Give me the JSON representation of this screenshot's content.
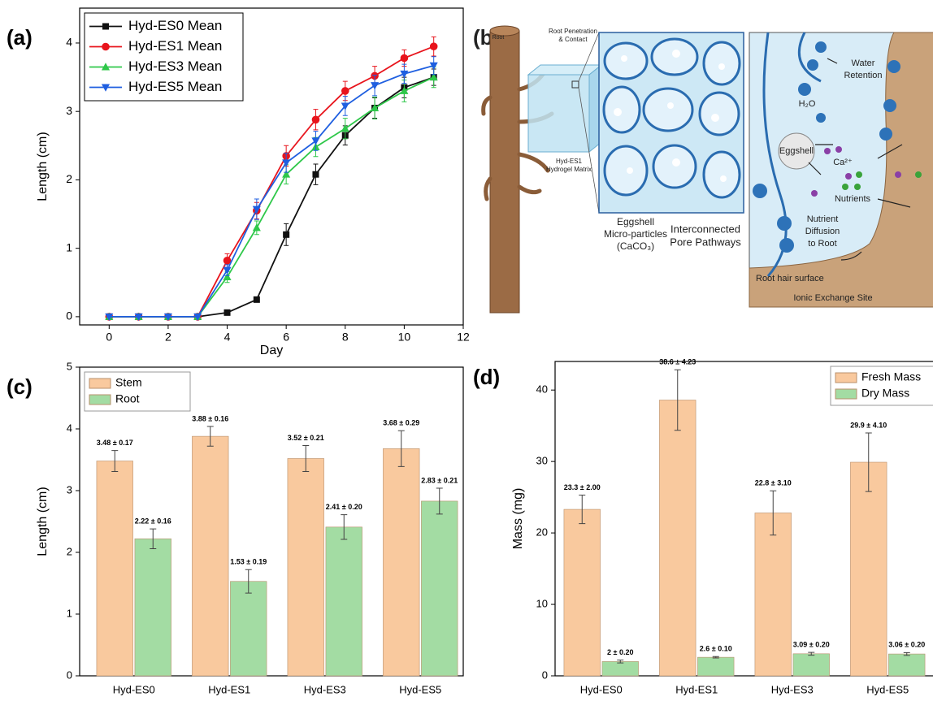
{
  "chart_data": [
    {
      "type": "line",
      "panel": "(a)",
      "xlabel": "Day",
      "ylabel": "Length (cm)",
      "x": [
        0,
        1,
        2,
        3,
        4,
        5,
        6,
        7,
        8,
        9,
        10,
        11
      ],
      "series": [
        {
          "name": "Hyd-ES0 Mean",
          "color": "#111111",
          "marker": "square",
          "values": [
            0,
            0,
            0,
            0,
            0.06,
            0.25,
            1.2,
            2.08,
            2.65,
            3.05,
            3.35,
            3.5
          ],
          "errors": [
            0,
            0,
            0,
            0,
            0.02,
            0.03,
            0.16,
            0.15,
            0.14,
            0.15,
            0.15,
            0.12
          ]
        },
        {
          "name": "Hyd-ES1 Mean",
          "color": "#e8141c",
          "marker": "circle",
          "values": [
            0,
            0,
            0,
            0,
            0.82,
            1.55,
            2.35,
            2.88,
            3.3,
            3.52,
            3.78,
            3.95
          ],
          "errors": [
            0,
            0,
            0,
            0,
            0.1,
            0.12,
            0.15,
            0.15,
            0.14,
            0.14,
            0.12,
            0.14
          ]
        },
        {
          "name": "Hyd-ES3 Mean",
          "color": "#2fc84a",
          "marker": "triangle-up",
          "values": [
            0,
            0,
            0,
            0,
            0.58,
            1.3,
            2.08,
            2.48,
            2.75,
            3.05,
            3.3,
            3.5
          ],
          "errors": [
            0,
            0,
            0,
            0,
            0.08,
            0.1,
            0.14,
            0.14,
            0.15,
            0.16,
            0.16,
            0.15
          ]
        },
        {
          "name": "Hyd-ES5 Mean",
          "color": "#1f5fe0",
          "marker": "triangle-down",
          "values": [
            0,
            0,
            0,
            0,
            0.68,
            1.57,
            2.25,
            2.57,
            3.08,
            3.38,
            3.55,
            3.67
          ],
          "errors": [
            0,
            0,
            0,
            0,
            0.08,
            0.15,
            0.14,
            0.14,
            0.14,
            0.15,
            0.14,
            0.13
          ]
        }
      ],
      "xlim": [
        -1,
        12
      ],
      "xticks": [
        0,
        2,
        4,
        6,
        8,
        10,
        12
      ],
      "ylim": [
        -0.12,
        4.51
      ],
      "yticks": [
        0,
        1,
        2,
        3,
        4
      ],
      "legend": "upper left"
    },
    {
      "type": "bar",
      "panel": "(c)",
      "ylabel": "Length (cm)",
      "categories": [
        "Hyd-ES0",
        "Hyd-ES1",
        "Hyd-ES3",
        "Hyd-ES5"
      ],
      "series": [
        {
          "name": "Stem",
          "color": "#f9c99e",
          "values": [
            3.48,
            3.88,
            3.52,
            3.68
          ],
          "errors": [
            0.17,
            0.16,
            0.21,
            0.29
          ],
          "value_labels": [
            "3.48 ± 0.17",
            "3.88 ± 0.16",
            "3.52 ± 0.21",
            "3.68 ± 0.29"
          ]
        },
        {
          "name": "Root",
          "color": "#a3dca3",
          "values": [
            2.22,
            1.53,
            2.41,
            2.83
          ],
          "errors": [
            0.16,
            0.19,
            0.2,
            0.21
          ],
          "value_labels": [
            "2.22 ± 0.16",
            "1.53 ± 0.19",
            "2.41 ± 0.20",
            "2.83 ± 0.21"
          ]
        }
      ],
      "ylim": [
        0,
        5
      ],
      "yticks": [
        0,
        1,
        2,
        3,
        4,
        5
      ],
      "legend": "upper left"
    },
    {
      "type": "bar",
      "panel": "(d)",
      "ylabel": "Mass (mg)",
      "categories": [
        "Hyd-ES0",
        "Hyd-ES1",
        "Hyd-ES3",
        "Hyd-ES5"
      ],
      "series": [
        {
          "name": "Fresh Mass",
          "color": "#f9c99e",
          "values": [
            23.3,
            38.6,
            22.8,
            29.9
          ],
          "errors": [
            2.0,
            4.23,
            3.1,
            4.1
          ],
          "value_labels": [
            "23.3 ± 2.00",
            "38.6 ± 4.23",
            "22.8 ± 3.10",
            "29.9 ± 4.10"
          ]
        },
        {
          "name": "Dry Mass",
          "color": "#a3dca3",
          "values": [
            2,
            2.6,
            3.09,
            3.06
          ],
          "errors": [
            0.2,
            0.1,
            0.2,
            0.2
          ],
          "value_labels": [
            "2 ± 0.20",
            "2.6 ± 0.10",
            "3.09 ± 0.20",
            "3.06 ± 0.20"
          ]
        }
      ],
      "ylim": [
        0,
        44
      ],
      "yticks": [
        0,
        10,
        20,
        30,
        40
      ],
      "legend": "upper right"
    }
  ],
  "diagram": {
    "panel": "(b)",
    "labels": {
      "root": "Root",
      "penetration": [
        "Root Penetration",
        "& Contact"
      ],
      "matrix": [
        "Hyd-ES1",
        "Hydrogel Matrix"
      ],
      "particles": [
        "Eggshell",
        "Micro-particles",
        "(CaCO₃)"
      ],
      "pores": [
        "Interconnected",
        "Pore Pathways"
      ],
      "water": [
        "Water",
        "Retention"
      ],
      "h2o": "H₂O",
      "eggshell": "Eggshell",
      "calcium": "Ca²⁺",
      "nutrients": "Nutrients",
      "diffusion": [
        "Nutrient",
        "Diffusion",
        "to Root"
      ],
      "surface": "Root hair surface",
      "exchange": "Ionic Exchange Site"
    }
  }
}
